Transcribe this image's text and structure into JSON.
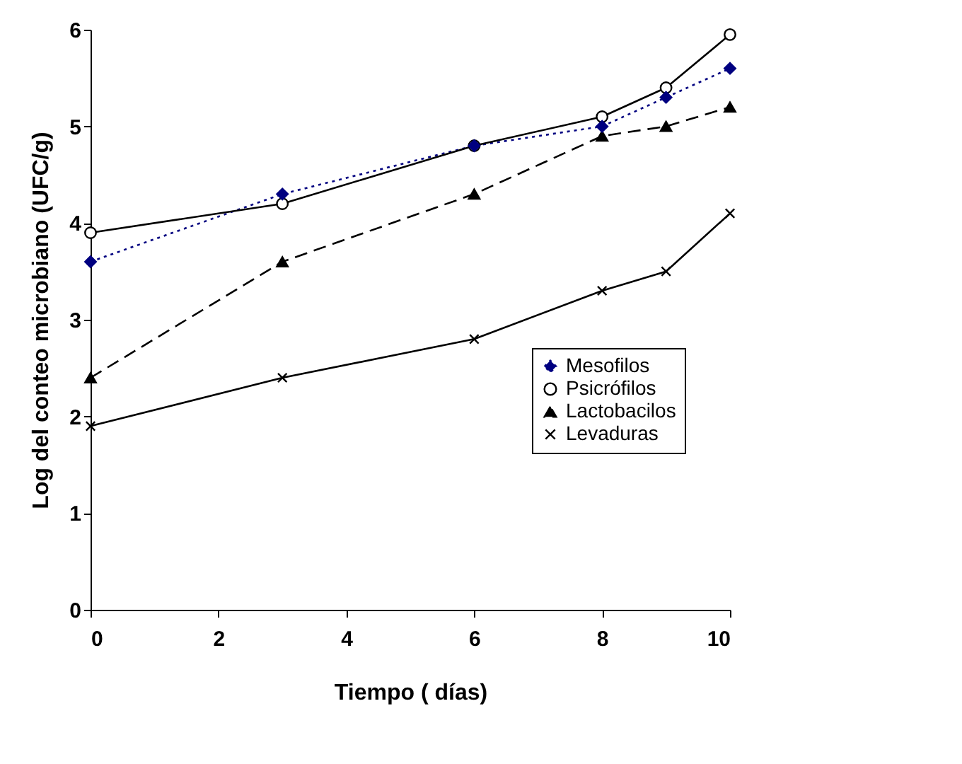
{
  "chart_data": {
    "type": "line",
    "xlabel": "Tiempo ( días)",
    "ylabel": "Log del conteo microbiano (UFC/g)",
    "x": [
      0,
      3,
      6,
      8,
      9,
      10
    ],
    "xlim": [
      0,
      10
    ],
    "xticks": [
      0,
      2,
      4,
      6,
      8,
      10
    ],
    "ylim": [
      0,
      6
    ],
    "yticks": [
      0,
      1,
      2,
      3,
      4,
      5,
      6
    ],
    "grid": false,
    "legend": "right",
    "series": [
      {
        "name": "Mesofilos",
        "color": "#000080",
        "marker": "diamond",
        "line_style": "dotted",
        "values": [
          3.6,
          4.3,
          4.8,
          5.0,
          5.3,
          5.6
        ]
      },
      {
        "name": "Psicrófilos",
        "color": "#000000",
        "marker": "circle",
        "line_style": "solid",
        "values": [
          3.9,
          4.2,
          4.8,
          5.1,
          5.4,
          5.95
        ]
      },
      {
        "name": "Lactobacilos",
        "color": "#000000",
        "marker": "triangle",
        "line_style": "dashed",
        "values": [
          2.4,
          3.6,
          4.3,
          4.9,
          5.0,
          5.2
        ]
      },
      {
        "name": "Levaduras",
        "color": "#000000",
        "marker": "cross",
        "line_style": "solid",
        "values": [
          1.9,
          2.4,
          2.8,
          3.3,
          3.5,
          4.1
        ]
      }
    ]
  }
}
